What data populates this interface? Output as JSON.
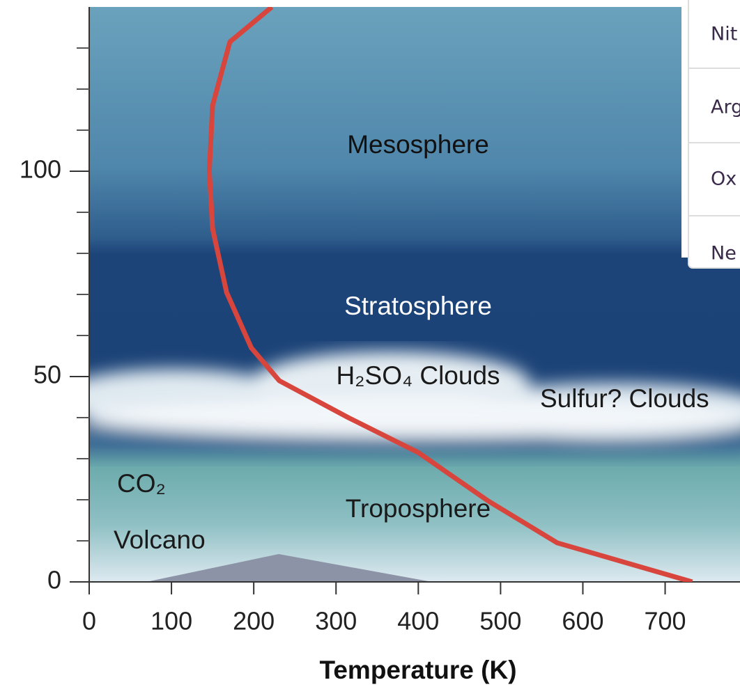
{
  "chart_data": {
    "type": "line",
    "x": [
      222,
      171,
      150,
      146,
      150,
      167,
      197,
      231,
      315,
      400,
      485,
      569,
      733
    ],
    "series": [
      {
        "color": "#d8453c",
        "values": [
          140,
          131.5,
          116,
          100,
          86,
          70.5,
          57,
          49,
          40,
          31.5,
          19.7,
          9.5,
          0
        ]
      }
    ],
    "xlim": [
      0,
      791
    ],
    "xticks": [
      0,
      100,
      200,
      300,
      400,
      500,
      600,
      700
    ],
    "ylim": [
      0,
      140
    ],
    "yticks": [
      0,
      50,
      100
    ],
    "y_minor_ticks": [
      10,
      20,
      30,
      40,
      60,
      70,
      80,
      90,
      110,
      120,
      130
    ],
    "xlabel": "Temperature (K)",
    "annotations": [
      "Mesosphere",
      "Stratosphere",
      "H₂SO₄ Clouds",
      "Sulfur? Clouds",
      "CO₂",
      "Troposphere",
      "Volcano"
    ]
  },
  "table": {
    "rows": [
      [
        "Nit"
      ],
      [
        "Arg"
      ],
      [
        "Ox"
      ],
      [
        "Ne"
      ]
    ]
  }
}
